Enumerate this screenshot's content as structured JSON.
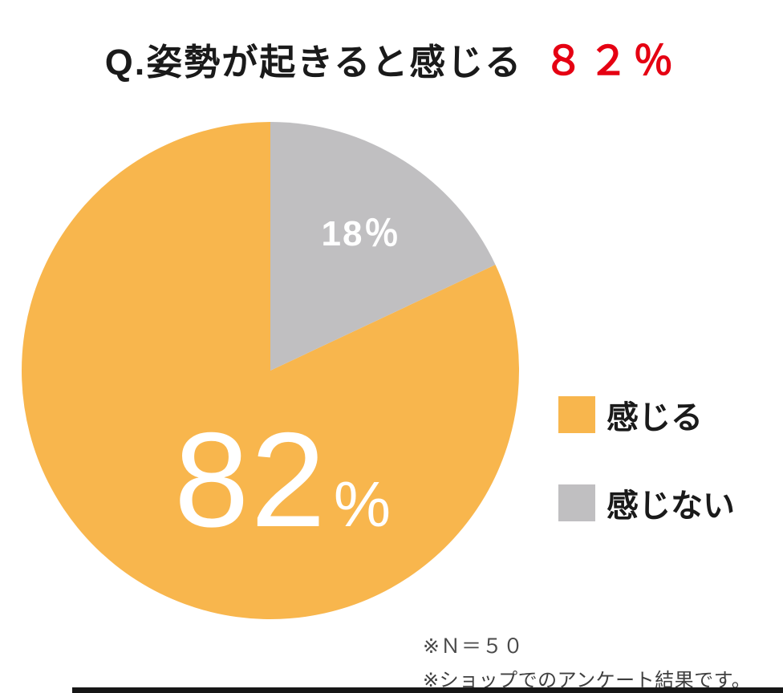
{
  "title": {
    "question": "Q.姿勢が起きると感じる",
    "highlight": "８２％",
    "highlight_color": "#e50012"
  },
  "chart_data": {
    "type": "pie",
    "title": "Q.姿勢が起きると感じる ８２％",
    "slices": [
      {
        "label": "感じる",
        "value": 82,
        "color": "#f8b64d"
      },
      {
        "label": "感じない",
        "value": 18,
        "color": "#c0bfc1"
      }
    ],
    "start_angle_deg": 64.8,
    "direction": "clockwise",
    "legend_position": "right",
    "notes": [
      "※Ｎ＝５０",
      "※ショップでのアンケート結果です。"
    ]
  },
  "pie_labels": {
    "small_slice": "18％",
    "big_slice_digits": "82",
    "big_slice_pct": "%"
  },
  "legend": [
    {
      "label": "感じる",
      "color": "#f8b64d"
    },
    {
      "label": "感じない",
      "color": "#c0bfc1"
    }
  ],
  "footnotes": {
    "n": "※Ｎ＝５０",
    "source": "※ショップでのアンケート結果です。"
  },
  "colors": {
    "accent_orange": "#f8b64d",
    "neutral_gray": "#c0bfc1",
    "highlight_red": "#e50012"
  }
}
